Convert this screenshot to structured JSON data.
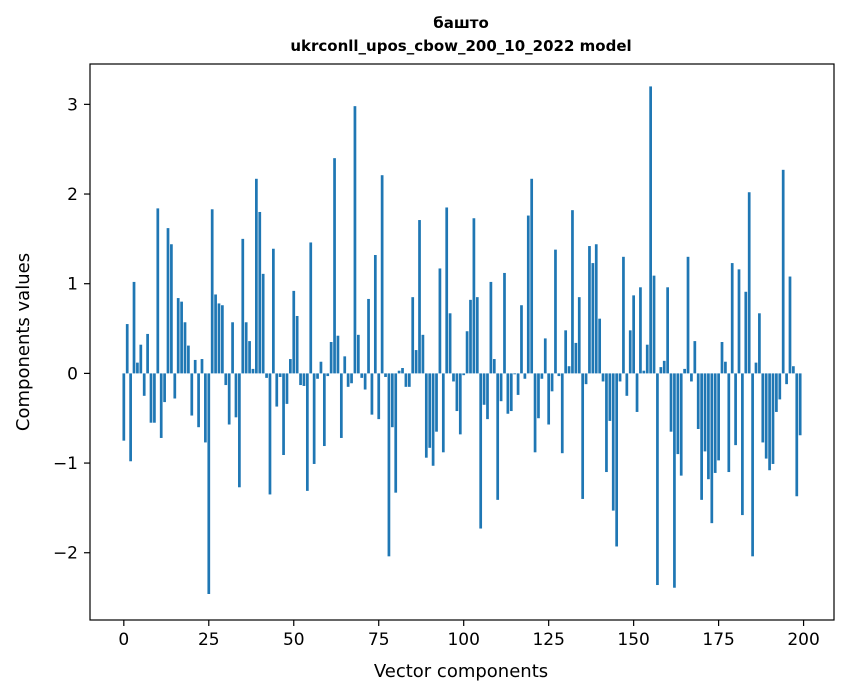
{
  "chart_data": {
    "type": "bar",
    "title": "башто",
    "subtitle": "ukrconll_upos_cbow_200_10_2022 model",
    "xlabel": "Vector components",
    "ylabel": "Components values",
    "xlim": [
      -9.95,
      208.95
    ],
    "ylim": [
      -2.75,
      3.45
    ],
    "xticks": [
      0,
      25,
      50,
      75,
      100,
      125,
      150,
      175,
      200
    ],
    "yticks": [
      -2,
      -1,
      0,
      1,
      2,
      3
    ],
    "ytick_labels": [
      "−2",
      "−1",
      "0",
      "1",
      "2",
      "3"
    ],
    "bar_color": "#1f77b4",
    "grid": false,
    "x": [
      0,
      1,
      2,
      3,
      4,
      5,
      6,
      7,
      8,
      9,
      10,
      11,
      12,
      13,
      14,
      15,
      16,
      17,
      18,
      19,
      20,
      21,
      22,
      23,
      24,
      25,
      26,
      27,
      28,
      29,
      30,
      31,
      32,
      33,
      34,
      35,
      36,
      37,
      38,
      39,
      40,
      41,
      42,
      43,
      44,
      45,
      46,
      47,
      48,
      49,
      50,
      51,
      52,
      53,
      54,
      55,
      56,
      57,
      58,
      59,
      60,
      61,
      62,
      63,
      64,
      65,
      66,
      67,
      68,
      69,
      70,
      71,
      72,
      73,
      74,
      75,
      76,
      77,
      78,
      79,
      80,
      81,
      82,
      83,
      84,
      85,
      86,
      87,
      88,
      89,
      90,
      91,
      92,
      93,
      94,
      95,
      96,
      97,
      98,
      99,
      100,
      101,
      102,
      103,
      104,
      105,
      106,
      107,
      108,
      109,
      110,
      111,
      112,
      113,
      114,
      115,
      116,
      117,
      118,
      119,
      120,
      121,
      122,
      123,
      124,
      125,
      126,
      127,
      128,
      129,
      130,
      131,
      132,
      133,
      134,
      135,
      136,
      137,
      138,
      139,
      140,
      141,
      142,
      143,
      144,
      145,
      146,
      147,
      148,
      149,
      150,
      151,
      152,
      153,
      154,
      155,
      156,
      157,
      158,
      159,
      160,
      161,
      162,
      163,
      164,
      165,
      166,
      167,
      168,
      169,
      170,
      171,
      172,
      173,
      174,
      175,
      176,
      177,
      178,
      179,
      180,
      181,
      182,
      183,
      184,
      185,
      186,
      187,
      188,
      189,
      190,
      191,
      192,
      193,
      194,
      195,
      196,
      197,
      198,
      199
    ],
    "values": [
      -0.75,
      0.55,
      -0.98,
      1.02,
      0.12,
      0.32,
      -0.25,
      0.44,
      -0.55,
      -0.55,
      1.84,
      -0.72,
      -0.32,
      1.62,
      1.44,
      -0.28,
      0.84,
      0.8,
      0.57,
      0.31,
      -0.47,
      0.15,
      -0.6,
      0.16,
      -0.77,
      -2.46,
      1.83,
      0.88,
      0.78,
      0.76,
      -0.13,
      -0.57,
      0.57,
      -0.49,
      -1.27,
      1.5,
      0.57,
      0.36,
      0.05,
      2.17,
      1.8,
      1.11,
      -0.05,
      -1.35,
      1.39,
      -0.37,
      -0.04,
      -0.91,
      -0.34,
      0.16,
      0.92,
      0.64,
      -0.13,
      -0.14,
      -1.31,
      1.46,
      -1.01,
      -0.06,
      0.13,
      -0.81,
      -0.03,
      0.35,
      2.4,
      0.42,
      -0.72,
      0.19,
      -0.15,
      -0.11,
      2.98,
      0.43,
      -0.05,
      -0.18,
      0.83,
      -0.46,
      1.32,
      -0.51,
      2.21,
      -0.04,
      -2.04,
      -0.6,
      -1.33,
      0.03,
      0.06,
      -0.15,
      -0.15,
      0.85,
      0.26,
      1.71,
      0.43,
      -0.94,
      -0.83,
      -1.03,
      -0.65,
      1.17,
      -0.88,
      1.85,
      0.67,
      -0.09,
      -0.42,
      -0.68,
      -0.02,
      0.47,
      0.82,
      1.73,
      0.85,
      -1.73,
      -0.35,
      -0.51,
      1.02,
      0.16,
      -1.41,
      -0.31,
      1.12,
      -0.45,
      -0.42,
      -0.01,
      -0.24,
      0.76,
      -0.06,
      1.76,
      2.17,
      -0.88,
      -0.5,
      -0.06,
      0.39,
      -0.57,
      -0.2,
      1.38,
      -0.03,
      -0.89,
      0.48,
      0.08,
      1.82,
      0.34,
      0.85,
      -1.4,
      -0.12,
      1.42,
      1.23,
      1.44,
      0.61,
      -0.09,
      -1.1,
      -0.53,
      -1.53,
      -1.93,
      -0.09,
      1.3,
      -0.25,
      0.48,
      0.87,
      -0.43,
      0.96,
      0.03,
      0.32,
      3.2,
      1.09,
      -2.36,
      0.07,
      0.14,
      0.96,
      -0.65,
      -2.39,
      -0.9,
      -1.14,
      0.05,
      1.3,
      -0.09,
      0.36,
      -0.62,
      -1.41,
      -0.87,
      -1.18,
      -1.67,
      -1.11,
      -0.97,
      0.35,
      0.13,
      -1.1,
      1.23,
      -0.8,
      1.16,
      -1.58,
      0.91,
      2.02,
      -2.04,
      0.12,
      0.67,
      -0.77,
      -0.95,
      -1.08,
      -1.01,
      -0.43,
      -0.29,
      2.27,
      -0.12,
      1.08,
      0.08,
      -1.37,
      -0.69
    ]
  }
}
